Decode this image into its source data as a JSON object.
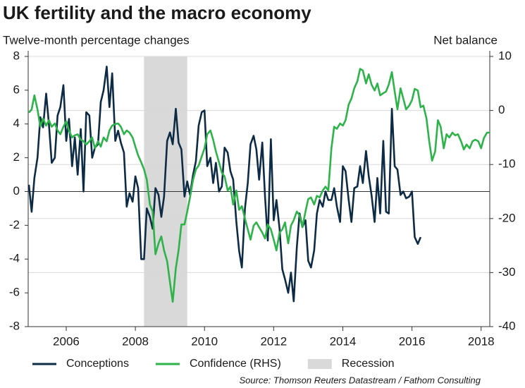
{
  "chart_data": {
    "type": "line",
    "title": "UK fertility and the macro economy",
    "ylabel": "Twelve-month percentage changes",
    "y2label": "Net balance",
    "source": "Source: Thomson Reuters Datastream / Fathom Consulting",
    "xlim": [
      2004.9,
      2018.25
    ],
    "xticks": [
      2006,
      2008,
      2010,
      2012,
      2014,
      2016,
      2018
    ],
    "ylim": [
      -8,
      8
    ],
    "yticks": [
      -8,
      -6,
      -4,
      -2,
      0,
      2,
      4,
      6,
      8
    ],
    "y2lim": [
      -40,
      10
    ],
    "y2ticks": [
      -40,
      -30,
      -20,
      -10,
      0,
      10
    ],
    "grid": "y2",
    "zero_line": 0,
    "recession": {
      "name": "Recession",
      "start": 2008.25,
      "end": 2009.5,
      "color": "#d9d9d9"
    },
    "series": [
      {
        "name": "Conceptions",
        "color": "#0d2b45",
        "x": [
          2004.92,
          2005.0,
          2005.08,
          2005.17,
          2005.25,
          2005.33,
          2005.42,
          2005.5,
          2005.58,
          2005.67,
          2005.75,
          2005.83,
          2005.92,
          2006.0,
          2006.08,
          2006.17,
          2006.25,
          2006.33,
          2006.42,
          2006.5,
          2006.58,
          2006.67,
          2006.75,
          2006.83,
          2006.92,
          2007.0,
          2007.08,
          2007.17,
          2007.25,
          2007.33,
          2007.42,
          2007.5,
          2007.58,
          2007.67,
          2007.75,
          2007.83,
          2007.92,
          2008.0,
          2008.08,
          2008.17,
          2008.25,
          2008.33,
          2008.42,
          2008.5,
          2008.58,
          2008.67,
          2008.75,
          2008.83,
          2008.92,
          2009.0,
          2009.08,
          2009.17,
          2009.25,
          2009.33,
          2009.42,
          2009.5,
          2009.58,
          2009.67,
          2009.75,
          2009.83,
          2009.92,
          2010.0,
          2010.08,
          2010.17,
          2010.25,
          2010.33,
          2010.42,
          2010.5,
          2010.58,
          2010.67,
          2010.75,
          2010.83,
          2010.92,
          2011.0,
          2011.08,
          2011.17,
          2011.25,
          2011.33,
          2011.42,
          2011.5,
          2011.58,
          2011.67,
          2011.75,
          2011.83,
          2011.92,
          2012.0,
          2012.08,
          2012.17,
          2012.25,
          2012.33,
          2012.42,
          2012.5,
          2012.58,
          2012.67,
          2012.75,
          2012.83,
          2012.92,
          2013.0,
          2013.08,
          2013.17,
          2013.25,
          2013.33,
          2013.42,
          2013.5,
          2013.58,
          2013.67,
          2013.75,
          2013.83,
          2013.92,
          2014.0,
          2014.08,
          2014.17,
          2014.25,
          2014.33,
          2014.42,
          2014.5,
          2014.58,
          2014.67,
          2014.75,
          2014.83,
          2014.92,
          2015.0,
          2015.08,
          2015.17,
          2015.25,
          2015.33,
          2015.42,
          2015.5,
          2015.58,
          2015.67,
          2015.75,
          2015.83,
          2015.92,
          2016.0,
          2016.08,
          2016.17,
          2016.25
        ],
        "values": [
          0.4,
          -1.2,
          0.8,
          2,
          4.4,
          3.8,
          5.8,
          4,
          1.7,
          2,
          4.5,
          5,
          6.3,
          3,
          4.3,
          1.5,
          3.2,
          1,
          3.7,
          0,
          4.7,
          4.5,
          2,
          2.6,
          2.8,
          5.3,
          6,
          7.4,
          5,
          7,
          3,
          3.6,
          2.9,
          2.3,
          -0.9,
          -0.1,
          -0.6,
          0.9,
          0.2,
          -4,
          -4,
          -1,
          -1.5,
          -2.2,
          0.2,
          -0.2,
          -1.5,
          -0.3,
          3,
          3.5,
          2.8,
          4.9,
          2.9,
          2.5,
          -0.3,
          0.6,
          -0.2,
          1,
          1.8,
          3.9,
          4.7,
          4.8,
          1.5,
          2,
          0.5,
          1.7,
          0,
          0.3,
          2.6,
          2.3,
          1.2,
          0.7,
          -1.8,
          -3.5,
          -4.5,
          -1,
          0.5,
          2.8,
          3.3,
          2.5,
          0.7,
          2.9,
          -0.3,
          -2.9,
          3.1,
          -1.7,
          -0.5,
          -2.2,
          -4.6,
          -5.2,
          -6,
          -4.8,
          -6.5,
          -3.3,
          -1.3,
          -2.1,
          -1.7,
          -4.1,
          -4.5,
          -3.5,
          -1.3,
          -0.5,
          -0.9,
          0,
          -0.5,
          -0.5,
          0.2,
          -0.9,
          -1.8,
          1.5,
          1.2,
          -0.5,
          -1.8,
          0.2,
          0.3,
          1.5,
          0.5,
          2.4,
          0.9,
          -0.2,
          -1.8,
          0.8,
          -1.3,
          3,
          -1.2,
          -1.3,
          4.9,
          1.5,
          1.3,
          -0.2,
          0,
          -0.4,
          -0.3,
          0,
          -2.7,
          -3.1,
          -2.7
        ]
      },
      {
        "name": "Confidence (RHS)",
        "color": "#2db34a",
        "axis": "y2",
        "x": [
          2004.92,
          2005.0,
          2005.08,
          2005.17,
          2005.25,
          2005.33,
          2005.42,
          2005.5,
          2005.58,
          2005.67,
          2005.75,
          2005.83,
          2005.92,
          2006.0,
          2006.08,
          2006.17,
          2006.25,
          2006.33,
          2006.42,
          2006.5,
          2006.58,
          2006.67,
          2006.75,
          2006.83,
          2006.92,
          2007.0,
          2007.08,
          2007.17,
          2007.25,
          2007.33,
          2007.42,
          2007.5,
          2007.58,
          2007.67,
          2007.75,
          2007.83,
          2007.92,
          2008.0,
          2008.08,
          2008.17,
          2008.25,
          2008.33,
          2008.42,
          2008.5,
          2008.58,
          2008.67,
          2008.75,
          2008.83,
          2008.92,
          2009.0,
          2009.08,
          2009.17,
          2009.25,
          2009.33,
          2009.42,
          2009.5,
          2009.58,
          2009.67,
          2009.75,
          2009.83,
          2009.92,
          2010.0,
          2010.08,
          2010.17,
          2010.25,
          2010.33,
          2010.42,
          2010.5,
          2010.58,
          2010.67,
          2010.75,
          2010.83,
          2010.92,
          2011.0,
          2011.08,
          2011.17,
          2011.25,
          2011.33,
          2011.42,
          2011.5,
          2011.58,
          2011.67,
          2011.75,
          2011.83,
          2011.92,
          2012.0,
          2012.08,
          2012.17,
          2012.25,
          2012.33,
          2012.42,
          2012.5,
          2012.58,
          2012.67,
          2012.75,
          2012.83,
          2012.92,
          2013.0,
          2013.08,
          2013.17,
          2013.25,
          2013.33,
          2013.42,
          2013.5,
          2013.58,
          2013.67,
          2013.75,
          2013.83,
          2013.92,
          2014.0,
          2014.08,
          2014.17,
          2014.25,
          2014.33,
          2014.42,
          2014.5,
          2014.58,
          2014.67,
          2014.75,
          2014.83,
          2014.92,
          2015.0,
          2015.08,
          2015.17,
          2015.25,
          2015.33,
          2015.42,
          2015.5,
          2015.58,
          2015.67,
          2015.75,
          2015.83,
          2015.92,
          2016.0,
          2016.08,
          2016.17,
          2016.25,
          2016.33,
          2016.42,
          2016.5,
          2016.58,
          2016.67,
          2016.75,
          2016.83,
          2016.92,
          2017.0,
          2017.08,
          2017.17,
          2017.25,
          2017.33,
          2017.42,
          2017.5,
          2017.58,
          2017.67,
          2017.75,
          2017.83,
          2017.92,
          2018.0,
          2018.08,
          2018.17,
          2018.25
        ],
        "values": [
          -0.4,
          0.2,
          2.8,
          0.2,
          -3,
          -1.5,
          -2.8,
          -1.8,
          -3,
          -2.4,
          -3.7,
          -4.4,
          -3,
          -2,
          -3.7,
          -5,
          -4.6,
          -4.4,
          -5.4,
          -5.7,
          -6.3,
          -5.7,
          -5,
          -7,
          -5.7,
          -6.7,
          -5,
          -5.7,
          -3.7,
          -2.8,
          -2.5,
          -2.4,
          -3,
          -4.4,
          -3.7,
          -4.1,
          -5,
          -6.7,
          -8.3,
          -9.6,
          -10.9,
          -12.8,
          -17.4,
          -18.7,
          -26.6,
          -24.6,
          -23.3,
          -25.9,
          -27.9,
          -31.8,
          -35.4,
          -29.2,
          -25.9,
          -21.1,
          -21.1,
          -18.7,
          -16.1,
          -12.8,
          -10.9,
          -10.2,
          -8.5,
          -7,
          -4.4,
          -3.7,
          -5.4,
          -7.6,
          -9.6,
          -11.5,
          -12.2,
          -14.8,
          -14.1,
          -17.4,
          -14.8,
          -18.4,
          -17.7,
          -20,
          -22,
          -23.9,
          -21.3,
          -20.7,
          -21.6,
          -22.6,
          -23.7,
          -21.1,
          -22,
          -23.9,
          -25.9,
          -22.6,
          -22,
          -20.7,
          -24.6,
          -21.3,
          -20.3,
          -18.7,
          -19.4,
          -21.6,
          -18.7,
          -16.4,
          -16.1,
          -17.4,
          -15.8,
          -16.1,
          -14.8,
          -14.1,
          -14.8,
          -7,
          -3,
          -3.4,
          -2.4,
          -2.8,
          -1.8,
          1.1,
          2.2,
          4.1,
          5.4,
          7.7,
          7.4,
          5,
          6.7,
          4.8,
          3.7,
          5,
          2.8,
          3.2,
          3.5,
          4.8,
          7.1,
          3.5,
          0.2,
          4.1,
          2.2,
          0.2,
          0.9,
          1.9,
          4,
          3.7,
          0.6,
          0.9,
          -1.5,
          -5.7,
          -9.3,
          -7.6,
          -1.8,
          -3,
          -7,
          -4.4,
          -5,
          -4.1,
          -4.6,
          -4.4,
          -5.7,
          -7.2,
          -6.3,
          -7,
          -5.7,
          -5.4,
          -5.7,
          -7,
          -5.1,
          -4.1,
          -4.1
        ]
      }
    ]
  }
}
